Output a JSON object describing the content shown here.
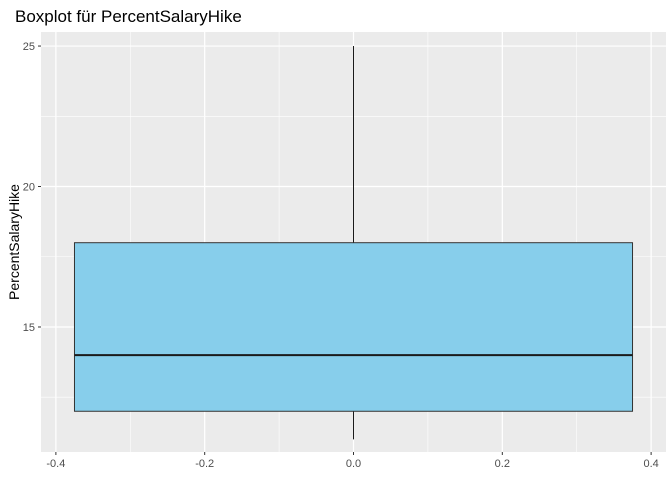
{
  "chart_data": {
    "type": "boxplot",
    "title": "Boxplot für PercentSalaryHike",
    "xlabel": "",
    "ylabel": "PercentSalaryHike",
    "xlim": [
      -0.42,
      0.42
    ],
    "ylim": [
      10.55,
      25.5
    ],
    "x_ticks": [
      -0.4,
      -0.2,
      0.0,
      0.2,
      0.4
    ],
    "x_tick_labels": [
      "-0.4",
      "-0.2",
      "0.0",
      "0.2",
      "0.4"
    ],
    "y_ticks": [
      15,
      20,
      25
    ],
    "y_tick_labels": [
      "15",
      "20",
      "25"
    ],
    "box": {
      "x_center": 0.0,
      "x_half_width": 0.375,
      "min": 11,
      "q1": 12,
      "median": 14,
      "q3": 18,
      "max": 25
    },
    "grid": true,
    "colors": {
      "panel_background": "#ebebeb",
      "grid_major": "#ffffff",
      "box_fill": "#87ceeb",
      "box_outline": "#333333",
      "median_line": "#1a1a1a",
      "whisker": "#1a1a1a"
    }
  }
}
